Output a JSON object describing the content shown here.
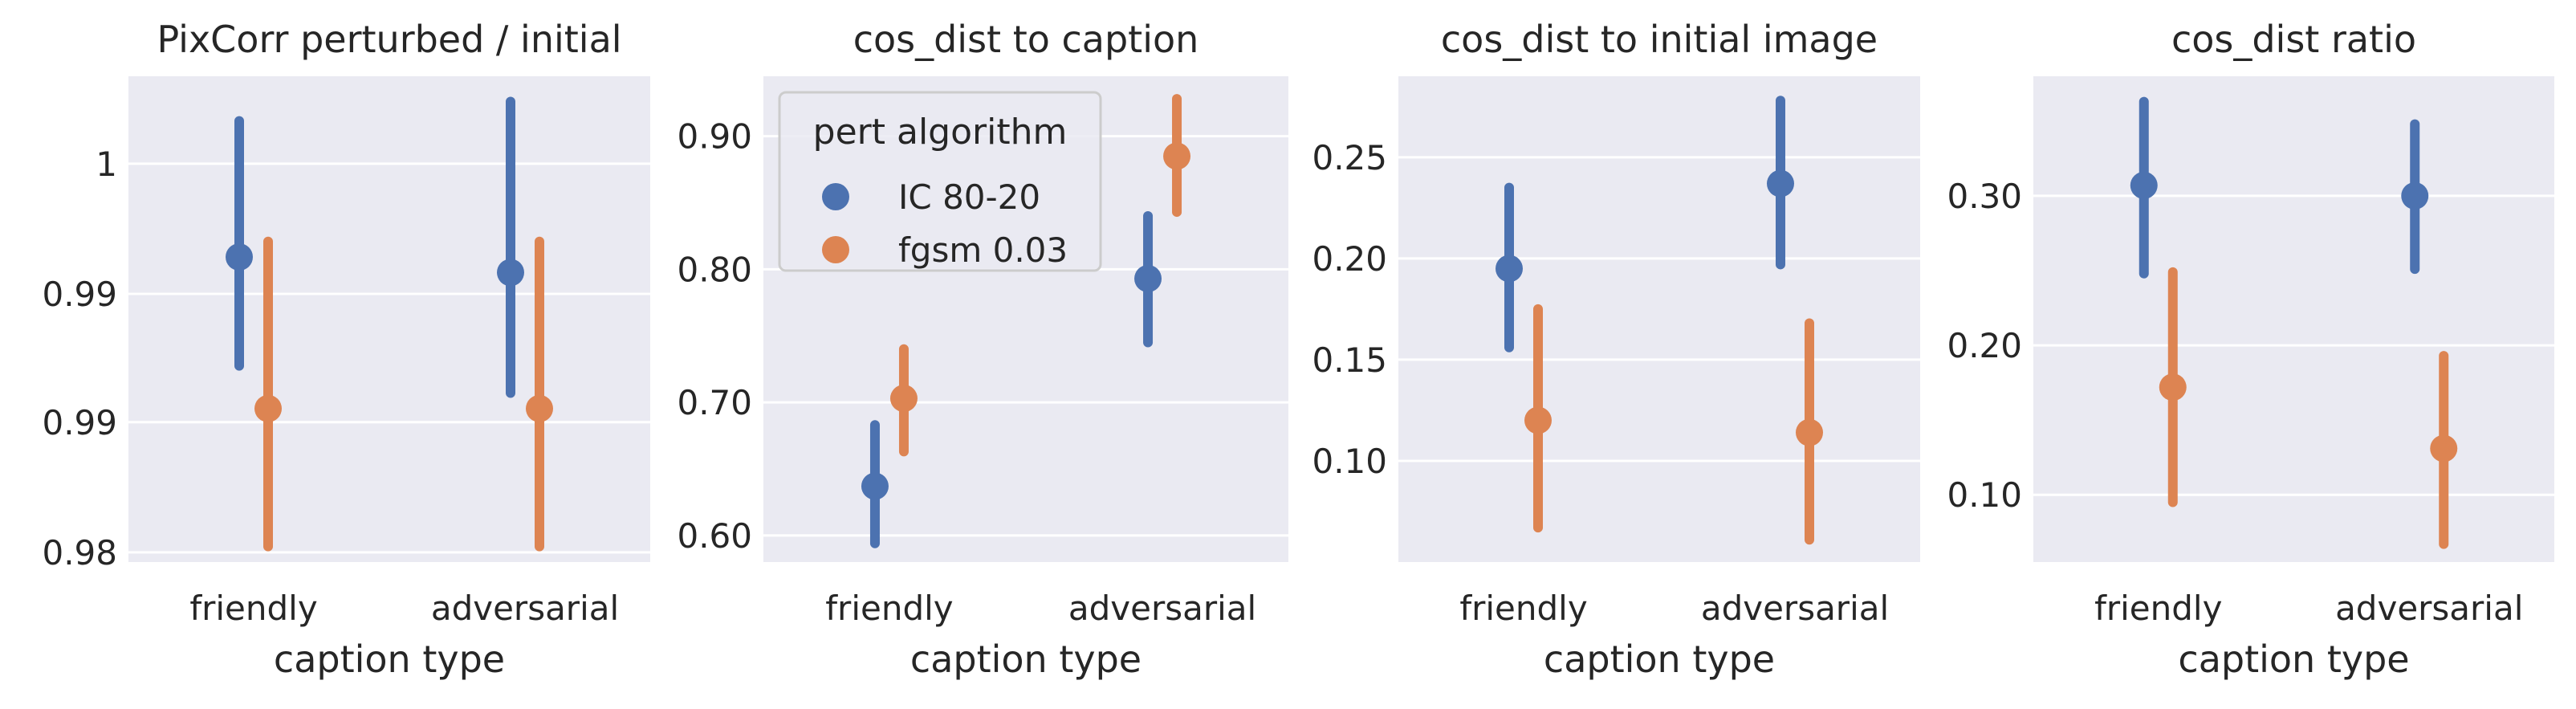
{
  "chart_data": [
    {
      "type": "pointplot",
      "title": "PixCorr perturbed / initial",
      "xlabel": "caption type",
      "ylabel": "",
      "categories": [
        "friendly",
        "adversarial"
      ],
      "ylim": [
        0.9795,
        1.0045
      ],
      "ytick_values": [
        0.98,
        0.9867,
        0.9933,
        1.0
      ],
      "ytick_labels": [
        "0.98",
        "0.99",
        "0.99",
        "1"
      ],
      "series": [
        {
          "name": "IC 80-20",
          "values": [
            0.9952,
            0.9944
          ],
          "ci_low": [
            0.9896,
            0.9882
          ],
          "ci_high": [
            1.0022,
            1.0032
          ]
        },
        {
          "name": "fgsm 0.03",
          "values": [
            0.9874,
            0.9874
          ],
          "ci_low": [
            0.9803,
            0.9803
          ],
          "ci_high": [
            0.996,
            0.996
          ]
        }
      ]
    },
    {
      "type": "pointplot",
      "title": "cos_dist to caption",
      "xlabel": "caption type",
      "ylabel": "",
      "categories": [
        "friendly",
        "adversarial"
      ],
      "ylim": [
        0.58,
        0.945
      ],
      "ytick_values": [
        0.6,
        0.7,
        0.8,
        0.9
      ],
      "ytick_labels": [
        "0.60",
        "0.70",
        "0.80",
        "0.90"
      ],
      "series": [
        {
          "name": "IC 80-20",
          "values": [
            0.637,
            0.793
          ],
          "ci_low": [
            0.594,
            0.745
          ],
          "ci_high": [
            0.683,
            0.84
          ]
        },
        {
          "name": "fgsm 0.03",
          "values": [
            0.703,
            0.885
          ],
          "ci_low": [
            0.663,
            0.843
          ],
          "ci_high": [
            0.74,
            0.928
          ]
        }
      ]
    },
    {
      "type": "pointplot",
      "title": "cos_dist to initial image",
      "xlabel": "caption type",
      "ylabel": "",
      "categories": [
        "friendly",
        "adversarial"
      ],
      "ylim": [
        0.05,
        0.29
      ],
      "ytick_values": [
        0.1,
        0.15,
        0.2,
        0.25
      ],
      "ytick_labels": [
        "0.10",
        "0.15",
        "0.20",
        "0.25"
      ],
      "series": [
        {
          "name": "IC 80-20",
          "values": [
            0.195,
            0.237
          ],
          "ci_low": [
            0.156,
            0.197
          ],
          "ci_high": [
            0.235,
            0.278
          ]
        },
        {
          "name": "fgsm 0.03",
          "values": [
            0.12,
            0.114
          ],
          "ci_low": [
            0.067,
            0.061
          ],
          "ci_high": [
            0.175,
            0.168
          ]
        }
      ]
    },
    {
      "type": "pointplot",
      "title": "cos_dist ratio",
      "xlabel": "caption type",
      "ylabel": "",
      "categories": [
        "friendly",
        "adversarial"
      ],
      "ylim": [
        0.055,
        0.38
      ],
      "ytick_values": [
        0.1,
        0.2,
        0.3
      ],
      "ytick_labels": [
        "0.10",
        "0.20",
        "0.30"
      ],
      "series": [
        {
          "name": "IC 80-20",
          "values": [
            0.307,
            0.3
          ],
          "ci_low": [
            0.248,
            0.251
          ],
          "ci_high": [
            0.363,
            0.348
          ]
        },
        {
          "name": "fgsm 0.03",
          "values": [
            0.172,
            0.131
          ],
          "ci_low": [
            0.095,
            0.067
          ],
          "ci_high": [
            0.249,
            0.193
          ]
        }
      ]
    }
  ],
  "legend": {
    "title": "pert algorithm",
    "placement": "upper-left of second panel",
    "entries": [
      "IC 80-20",
      "fgsm 0.03"
    ]
  },
  "colors": {
    "IC 80-20": "#4c72b0",
    "fgsm 0.03": "#dd8452",
    "axes_background": "#eaeaf2",
    "grid": "#ffffff"
  },
  "grid": true
}
